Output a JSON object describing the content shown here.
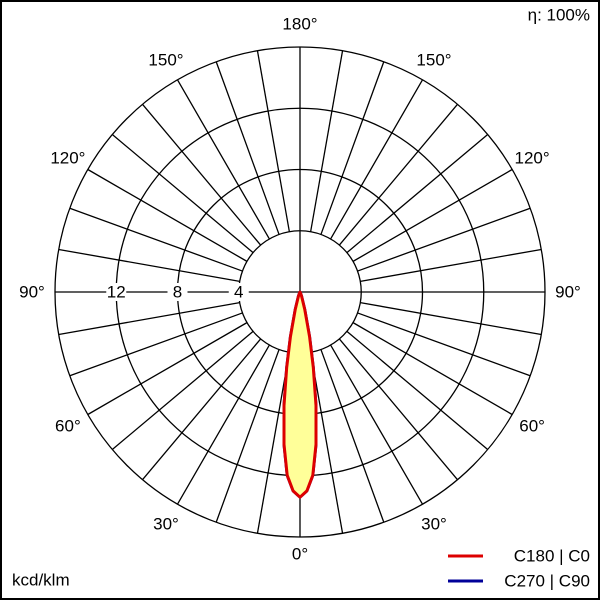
{
  "chart_data": {
    "type": "polar",
    "efficiency": "η: 100%",
    "unit_label": "kcd/klm",
    "rlim": [
      0,
      16
    ],
    "rticks": [
      4,
      8,
      12
    ],
    "thetaticks": [
      {
        "value": 0,
        "label": "0°"
      },
      {
        "value": 30,
        "label": "30°"
      },
      {
        "value": 60,
        "label": "60°"
      },
      {
        "value": 90,
        "label": "90°"
      },
      {
        "value": 120,
        "label": "120°"
      },
      {
        "value": 150,
        "label": "150°"
      },
      {
        "value": 180,
        "label": "180°"
      }
    ],
    "fill": "#ffff99",
    "x": [
      -30,
      -25,
      -20,
      -15,
      -12,
      -10,
      -8,
      -6,
      -4,
      -2,
      0,
      2,
      4,
      6,
      8,
      10,
      12,
      15,
      20,
      25,
      30
    ],
    "series": [
      {
        "name": "C270 | C90",
        "color": "#000099",
        "values": [
          0,
          0.1,
          0.3,
          1.2,
          3,
          5,
          7.5,
          10,
          12,
          13,
          13.4,
          13,
          12,
          10,
          7.5,
          5,
          3,
          1.2,
          0.3,
          0.1,
          0
        ]
      },
      {
        "name": "C180 | C0",
        "color": "#dd0000",
        "values": [
          0,
          0.1,
          0.3,
          1.2,
          3,
          5,
          7.5,
          10,
          12,
          13,
          13.4,
          13,
          12,
          10,
          7.5,
          5,
          3,
          1.2,
          0.3,
          0.1,
          0
        ]
      }
    ]
  }
}
